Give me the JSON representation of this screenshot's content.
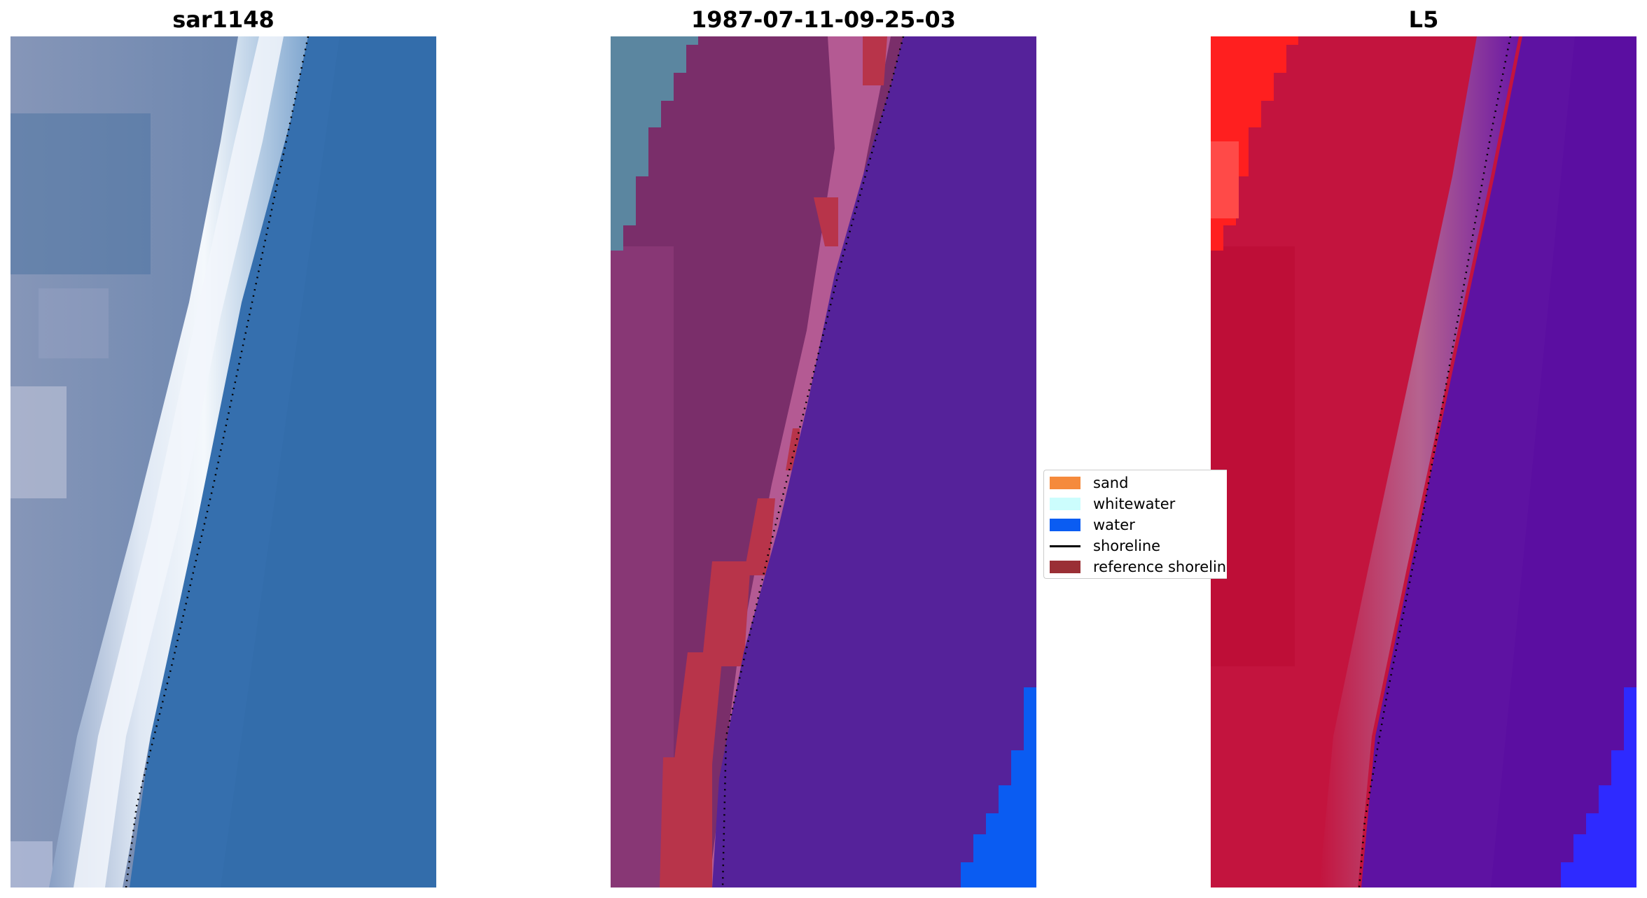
{
  "panels": [
    {
      "title": "sar1148",
      "icon": "satellite-image"
    },
    {
      "title": "1987-07-11-09-25-03",
      "icon": "classified-image"
    },
    {
      "title": "L5",
      "icon": "probability-image"
    }
  ],
  "legend": {
    "items": [
      {
        "label": "sand",
        "color": "#f58a3c",
        "kind": "patch"
      },
      {
        "label": "whitewater",
        "color": "#ccfdfd",
        "kind": "patch"
      },
      {
        "label": "water",
        "color": "#0a5cf2",
        "kind": "patch"
      },
      {
        "label": "shoreline",
        "color": "#000000",
        "kind": "line"
      },
      {
        "label": "reference shoreline",
        "color": "#9a2f35",
        "kind": "patch"
      }
    ]
  },
  "colors": {
    "ocean_blue": "#356fae",
    "whitewater_white": "#e8eef7",
    "land_gray": "#7d8fb2",
    "class_sand_overlay": "#7a2e6a",
    "class_water_overlay": "#55229a",
    "class_reference": "#b8344a",
    "prob_land_red": "#c3143e",
    "prob_water_purple": "#5e12a2",
    "pure_water_blue": "#0a5cf2"
  }
}
